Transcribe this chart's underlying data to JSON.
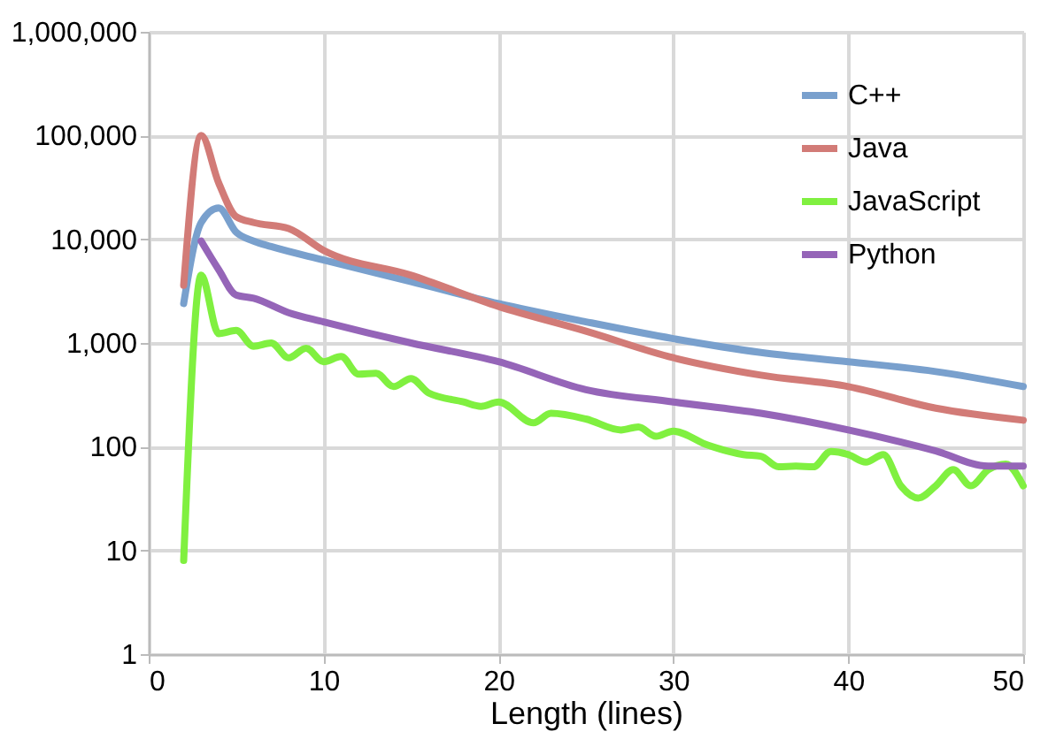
{
  "chart_data": {
    "type": "line",
    "xlabel": "Length (lines)",
    "xlim": [
      0,
      50
    ],
    "xticks": [
      0,
      10,
      20,
      30,
      40,
      50
    ],
    "ylim": [
      1,
      1000000
    ],
    "log": "y",
    "yticks": [
      1,
      10,
      100,
      {
        "value": 1000,
        "label": "1,000"
      },
      {
        "value": 10000,
        "label": "10,000"
      },
      {
        "value": 100000,
        "label": "100,000"
      },
      {
        "value": 1000000,
        "label": "1,000,000"
      }
    ],
    "grid": true,
    "legend": "top right",
    "line_style": "solid",
    "marker": "none",
    "series": [
      {
        "name": "C++",
        "color": "#79a0cd",
        "x": [
          2,
          3,
          4,
          5,
          6,
          7,
          10,
          15,
          20,
          25,
          30,
          35,
          40,
          45,
          50
        ],
        "values": [
          2400,
          14500,
          20000,
          11700,
          9600,
          8500,
          6300,
          3900,
          2400,
          1600,
          1100,
          810,
          660,
          530,
          380
        ]
      },
      {
        "name": "Java",
        "color": "#d27b77",
        "x": [
          2,
          3,
          4,
          5,
          6,
          8,
          10,
          15,
          20,
          25,
          30,
          35,
          40,
          45,
          50
        ],
        "values": [
          3600,
          100000,
          35000,
          16500,
          14500,
          12700,
          7800,
          4500,
          2250,
          1300,
          720,
          490,
          380,
          235,
          180
        ]
      },
      {
        "name": "JavaScript",
        "color": "#80f040",
        "x": [
          2,
          3,
          4,
          5,
          6,
          7,
          8,
          9,
          10,
          11,
          12,
          13,
          14,
          15,
          16,
          18,
          19,
          20,
          22,
          23,
          25,
          27,
          28,
          29,
          30,
          32,
          34,
          35,
          36,
          37,
          38,
          39,
          40,
          41,
          42,
          43,
          44,
          45,
          46,
          47,
          48,
          49,
          50
        ],
        "values": [
          8,
          4500,
          1230,
          1320,
          930,
          1000,
          720,
          890,
          660,
          740,
          500,
          510,
          380,
          455,
          330,
          270,
          245,
          270,
          170,
          210,
          185,
          145,
          155,
          126,
          141,
          103,
          84,
          81,
          64,
          65,
          64,
          90,
          84,
          71,
          84,
          42,
          32,
          42,
          60,
          42,
          60,
          68,
          42
        ]
      },
      {
        "name": "Python",
        "color": "#9565b8",
        "x": [
          3,
          4,
          5,
          6,
          8,
          10,
          15,
          20,
          25,
          30,
          35,
          40,
          45,
          48,
          50
        ],
        "values": [
          9600,
          5100,
          2900,
          2700,
          1960,
          1600,
          1000,
          660,
          355,
          270,
          210,
          145,
          91,
          65,
          65
        ]
      }
    ]
  }
}
